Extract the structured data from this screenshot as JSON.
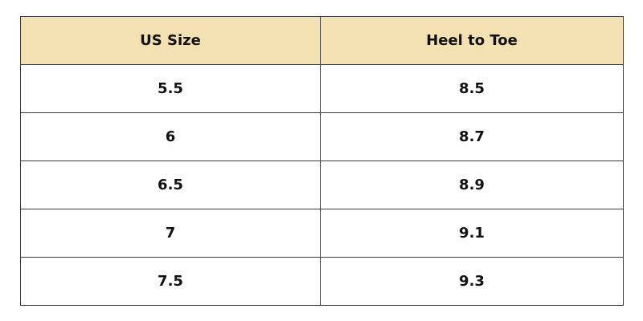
{
  "table": {
    "headers": [
      "US Size",
      "Heel to Toe"
    ],
    "rows": [
      [
        5.5,
        8.5
      ],
      [
        6,
        8.7
      ],
      [
        6.5,
        8.9
      ],
      [
        7,
        9.1
      ],
      [
        7.5,
        9.3
      ]
    ]
  }
}
